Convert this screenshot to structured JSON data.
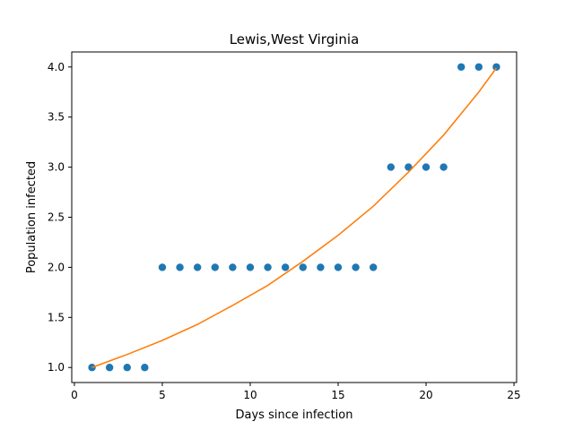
{
  "chart_data": {
    "type": "scatter",
    "title": "Lewis,West Virginia",
    "xlabel": "Days since infection",
    "ylabel": "Population infected",
    "xlim": [
      -0.15,
      25.15
    ],
    "ylim": [
      0.85,
      4.15
    ],
    "xticks": [
      0,
      5,
      10,
      15,
      20,
      25
    ],
    "xtick_labels": [
      "0",
      "5",
      "10",
      "15",
      "20",
      "25"
    ],
    "yticks": [
      1.0,
      1.5,
      2.0,
      2.5,
      3.0,
      3.5,
      4.0
    ],
    "ytick_labels": [
      "1.0",
      "1.5",
      "2.0",
      "2.5",
      "3.0",
      "3.5",
      "4.0"
    ],
    "grid": false,
    "series": [
      {
        "type": "scatter",
        "color": "#1f77b4",
        "x": [
          1,
          2,
          3,
          4,
          5,
          6,
          7,
          8,
          9,
          10,
          11,
          12,
          13,
          14,
          15,
          16,
          17,
          18,
          19,
          20,
          21,
          22,
          23,
          24
        ],
        "y": [
          1,
          1,
          1,
          1,
          2,
          2,
          2,
          2,
          2,
          2,
          2,
          2,
          2,
          2,
          2,
          2,
          2,
          3,
          3,
          3,
          3,
          4,
          4,
          4
        ]
      },
      {
        "type": "line",
        "color": "#ff7f0e",
        "x": [
          1,
          3,
          5,
          7,
          9,
          11,
          13,
          15,
          17,
          19,
          21,
          23,
          24
        ],
        "y": [
          1.0,
          1.13,
          1.27,
          1.43,
          1.62,
          1.82,
          2.06,
          2.32,
          2.61,
          2.95,
          3.32,
          3.75,
          3.99
        ]
      }
    ]
  }
}
